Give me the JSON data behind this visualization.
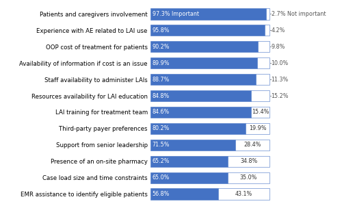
{
  "categories": [
    "Patients and caregivers involvement",
    "Experience with AE related to LAI use",
    "OOP cost of treatment for patients",
    "Availability of information if cost is an issue",
    "Staff availability to administer LAIs",
    "Resources availability for LAI education",
    "LAI training for treatment team",
    "Third-party payer preferences",
    "Support from senior leadership",
    "Presence of an on-site pharmacy",
    "Case load size and time constraints",
    "EMR assistance to identify eligible patients"
  ],
  "important": [
    97.3,
    95.8,
    90.2,
    89.9,
    88.7,
    84.8,
    84.6,
    80.2,
    71.5,
    65.2,
    65.0,
    56.8
  ],
  "not_important": [
    2.7,
    4.2,
    9.8,
    10.0,
    11.3,
    15.2,
    15.4,
    19.9,
    28.4,
    34.8,
    35.0,
    43.1
  ],
  "important_labels": [
    "97.3% Important",
    "95.8%",
    "90.2%",
    "89.9%",
    "88.7%",
    "84.8%",
    "84.6%",
    "80.2%",
    "71.5%",
    "65.2%",
    "65.0%",
    "56.8%"
  ],
  "not_important_labels": [
    "2.7% Not important",
    "4.2%",
    "9.8%",
    "10.0%",
    "11.3%",
    "15.2%",
    "15.4%",
    "19.9%",
    "28.4%",
    "34.8%",
    "35.0%",
    "43.1%"
  ],
  "bar_color_important": "#4472C4",
  "bar_color_not_important": "#FFFFFF",
  "bar_edge_color": "#4472C4",
  "text_color_on_blue": "#FFFFFF",
  "text_color_on_white": "#333333",
  "label_color_outside": "#555555",
  "background_color": "#FFFFFF",
  "bar_height": 0.68,
  "font_size_bars": 5.8,
  "font_size_labels": 6.2,
  "nimp_inside_threshold": 15.4
}
